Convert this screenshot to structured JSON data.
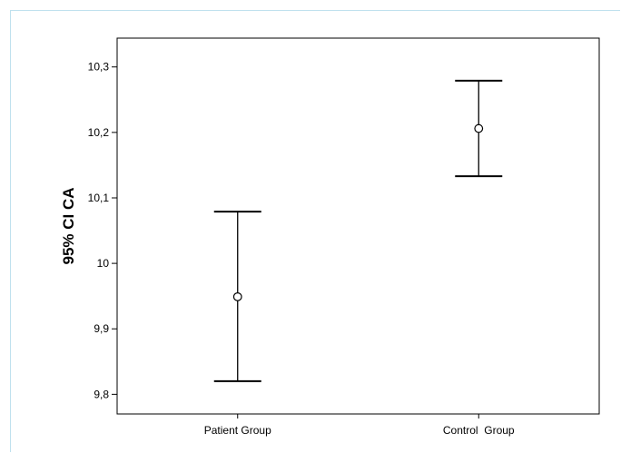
{
  "chart_data": {
    "type": "errorbar",
    "ylabel": "95% CI CA",
    "xlabel": "",
    "ylim": [
      9.77,
      10.344
    ],
    "yticks": [
      {
        "value": 9.8,
        "label": "9,8"
      },
      {
        "value": 9.9,
        "label": "9,9"
      },
      {
        "value": 10.0,
        "label": "10"
      },
      {
        "value": 10.1,
        "label": "10,1"
      },
      {
        "value": 10.2,
        "label": "10,2"
      },
      {
        "value": 10.3,
        "label": "10,3"
      }
    ],
    "categories": [
      "Patient Group",
      "Control  Group"
    ],
    "points": [
      {
        "category": "Patient Group",
        "mean": 9.949,
        "lower": 9.82,
        "upper": 10.079
      },
      {
        "category": "Control  Group",
        "mean": 10.206,
        "lower": 10.133,
        "upper": 10.279
      }
    ],
    "grid": false
  }
}
